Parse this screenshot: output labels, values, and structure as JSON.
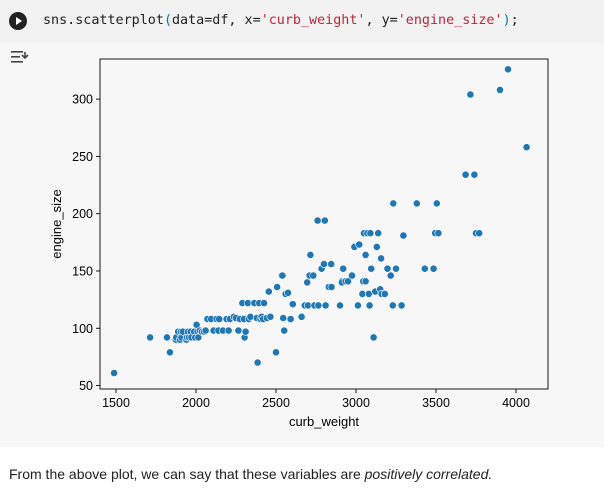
{
  "notebook": {
    "code": {
      "fn": "sns.scatterplot",
      "open": "(",
      "args_prefix": "data=df, x=",
      "x_str": "'curb_weight'",
      "sep": ", y=",
      "y_str": "'engine_size'",
      "close": ")",
      "end": ";"
    },
    "caption": {
      "before": "From the above plot, we can say that these variables are ",
      "emph": "positively correlated."
    }
  },
  "colors": {
    "point_fill": "#1f77b4",
    "point_edge": "#ffffff",
    "axis": "#000000"
  },
  "chart_data": {
    "type": "scatter",
    "xlabel": "curb_weight",
    "ylabel": "engine_size",
    "xlim": [
      1400,
      4200
    ],
    "ylim": [
      47,
      335
    ],
    "xticks": [
      1500,
      2000,
      2500,
      3000,
      3500,
      4000
    ],
    "yticks": [
      50,
      100,
      150,
      200,
      250,
      300
    ],
    "grid": false,
    "points": [
      [
        1488,
        61
      ],
      [
        1713,
        92
      ],
      [
        1819,
        92
      ],
      [
        1837,
        79
      ],
      [
        1874,
        90
      ],
      [
        1876,
        92
      ],
      [
        1889,
        97
      ],
      [
        1900,
        90
      ],
      [
        1905,
        97
      ],
      [
        1909,
        92
      ],
      [
        1918,
        97
      ],
      [
        1940,
        90
      ],
      [
        1944,
        92
      ],
      [
        1950,
        97
      ],
      [
        1956,
        92
      ],
      [
        1967,
        97
      ],
      [
        1971,
        92
      ],
      [
        1989,
        97
      ],
      [
        1995,
        92
      ],
      [
        2004,
        103
      ],
      [
        2010,
        97
      ],
      [
        2015,
        92
      ],
      [
        2024,
        98
      ],
      [
        2037,
        97
      ],
      [
        2050,
        97
      ],
      [
        2060,
        98
      ],
      [
        2072,
        108
      ],
      [
        2095,
        108
      ],
      [
        2110,
        98
      ],
      [
        2128,
        108
      ],
      [
        2140,
        98
      ],
      [
        2145,
        108
      ],
      [
        2169,
        98
      ],
      [
        2191,
        108
      ],
      [
        2204,
        98
      ],
      [
        2212,
        108
      ],
      [
        2236,
        110
      ],
      [
        2250,
        109
      ],
      [
        2265,
        98
      ],
      [
        2275,
        108
      ],
      [
        2290,
        122
      ],
      [
        2300,
        108
      ],
      [
        2304,
        92
      ],
      [
        2310,
        97
      ],
      [
        2324,
        122
      ],
      [
        2330,
        108
      ],
      [
        2340,
        110
      ],
      [
        2365,
        122
      ],
      [
        2380,
        109
      ],
      [
        2385,
        70
      ],
      [
        2395,
        122
      ],
      [
        2403,
        108
      ],
      [
        2410,
        110
      ],
      [
        2420,
        108
      ],
      [
        2425,
        122
      ],
      [
        2443,
        109
      ],
      [
        2455,
        132
      ],
      [
        2465,
        110
      ],
      [
        2500,
        79
      ],
      [
        2507,
        136
      ],
      [
        2535,
        146
      ],
      [
        2540,
        146
      ],
      [
        2545,
        109
      ],
      [
        2551,
        98
      ],
      [
        2560,
        130
      ],
      [
        2575,
        131
      ],
      [
        2591,
        108
      ],
      [
        2605,
        121
      ],
      [
        2660,
        110
      ],
      [
        2680,
        120
      ],
      [
        2695,
        140
      ],
      [
        2700,
        120
      ],
      [
        2710,
        146
      ],
      [
        2715,
        164
      ],
      [
        2733,
        146
      ],
      [
        2740,
        120
      ],
      [
        2760,
        194
      ],
      [
        2765,
        120
      ],
      [
        2785,
        152
      ],
      [
        2800,
        156
      ],
      [
        2805,
        194
      ],
      [
        2810,
        120
      ],
      [
        2830,
        136
      ],
      [
        2845,
        156
      ],
      [
        2847,
        136
      ],
      [
        2900,
        120
      ],
      [
        2910,
        141
      ],
      [
        2912,
        140
      ],
      [
        2920,
        152
      ],
      [
        2935,
        141
      ],
      [
        2950,
        141
      ],
      [
        2975,
        146
      ],
      [
        2990,
        171
      ],
      [
        3012,
        120
      ],
      [
        3020,
        173
      ],
      [
        3040,
        130
      ],
      [
        3045,
        141
      ],
      [
        3050,
        183
      ],
      [
        3060,
        141
      ],
      [
        3060,
        164
      ],
      [
        3071,
        183
      ],
      [
        3080,
        130
      ],
      [
        3085,
        120
      ],
      [
        3090,
        183
      ],
      [
        3095,
        152
      ],
      [
        3110,
        92
      ],
      [
        3120,
        132
      ],
      [
        3130,
        171
      ],
      [
        3139,
        183
      ],
      [
        3151,
        134
      ],
      [
        3157,
        161
      ],
      [
        3160,
        130
      ],
      [
        3180,
        130
      ],
      [
        3197,
        152
      ],
      [
        3217,
        146
      ],
      [
        3230,
        120
      ],
      [
        3233,
        209
      ],
      [
        3250,
        152
      ],
      [
        3285,
        120
      ],
      [
        3296,
        181
      ],
      [
        3380,
        209
      ],
      [
        3430,
        152
      ],
      [
        3485,
        152
      ],
      [
        3495,
        183
      ],
      [
        3505,
        209
      ],
      [
        3515,
        183
      ],
      [
        3685,
        234
      ],
      [
        3715,
        304
      ],
      [
        3740,
        234
      ],
      [
        3750,
        183
      ],
      [
        3770,
        183
      ],
      [
        3900,
        308
      ],
      [
        3950,
        326
      ],
      [
        4066,
        258
      ]
    ]
  }
}
